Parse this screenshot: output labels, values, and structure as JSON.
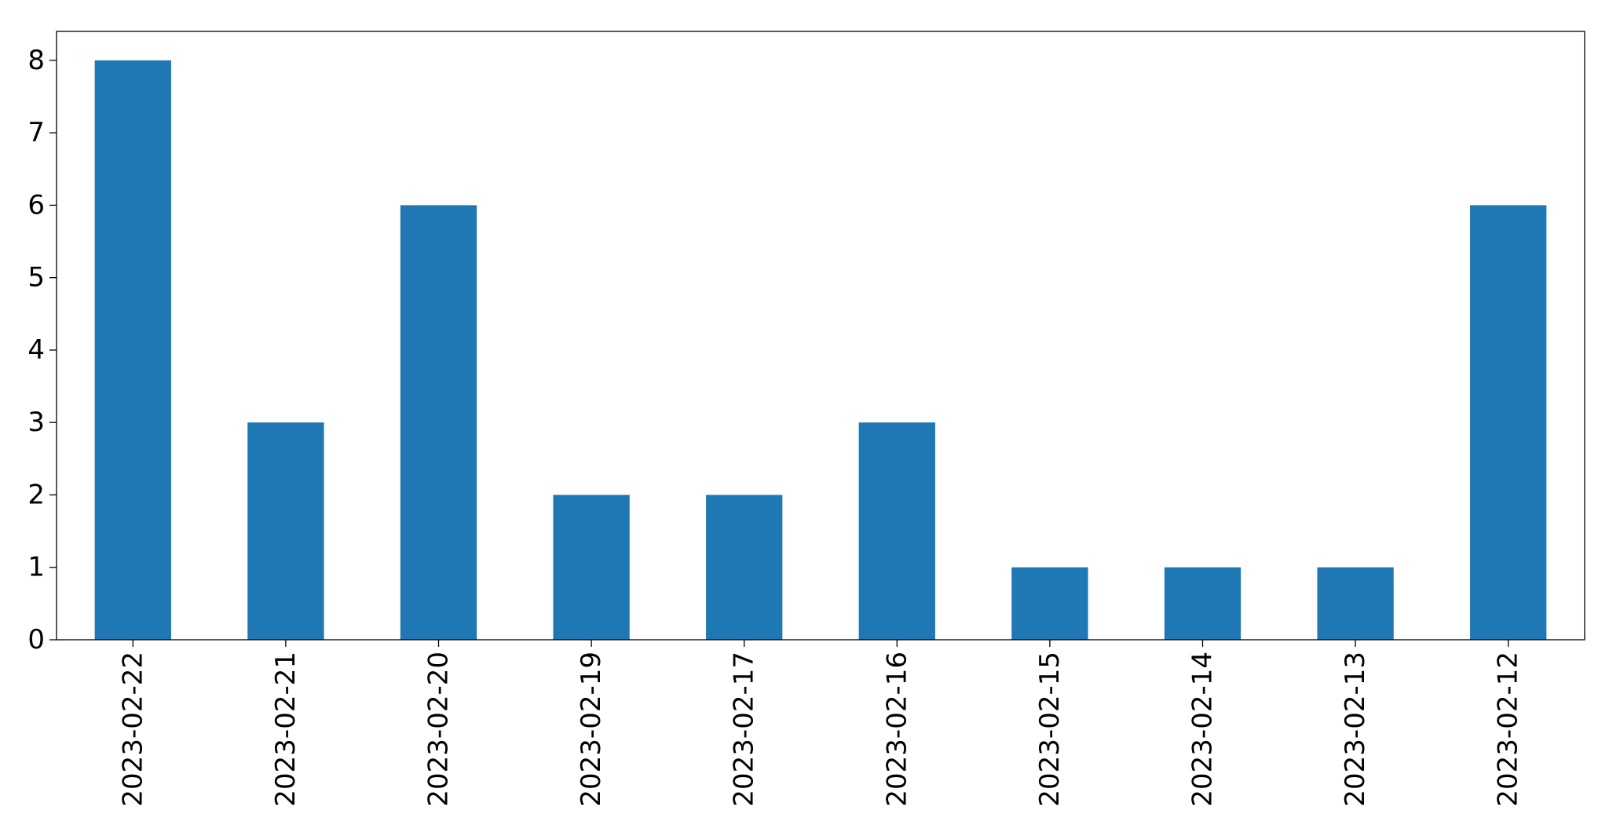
{
  "chart_data": {
    "type": "bar",
    "title": "",
    "xlabel": "",
    "ylabel": "",
    "categories": [
      "2023-02-22",
      "2023-02-21",
      "2023-02-20",
      "2023-02-19",
      "2023-02-17",
      "2023-02-16",
      "2023-02-15",
      "2023-02-14",
      "2023-02-13",
      "2023-02-12"
    ],
    "values": [
      8,
      3,
      6,
      2,
      2,
      3,
      1,
      1,
      1,
      6
    ],
    "ylim": [
      0,
      8.4
    ],
    "yticks": [
      0,
      1,
      2,
      3,
      4,
      5,
      6,
      7,
      8
    ],
    "grid": false,
    "legend": "none",
    "colors": {
      "bar": "#1f77b4",
      "axis": "#000000",
      "background": "#ffffff"
    }
  }
}
